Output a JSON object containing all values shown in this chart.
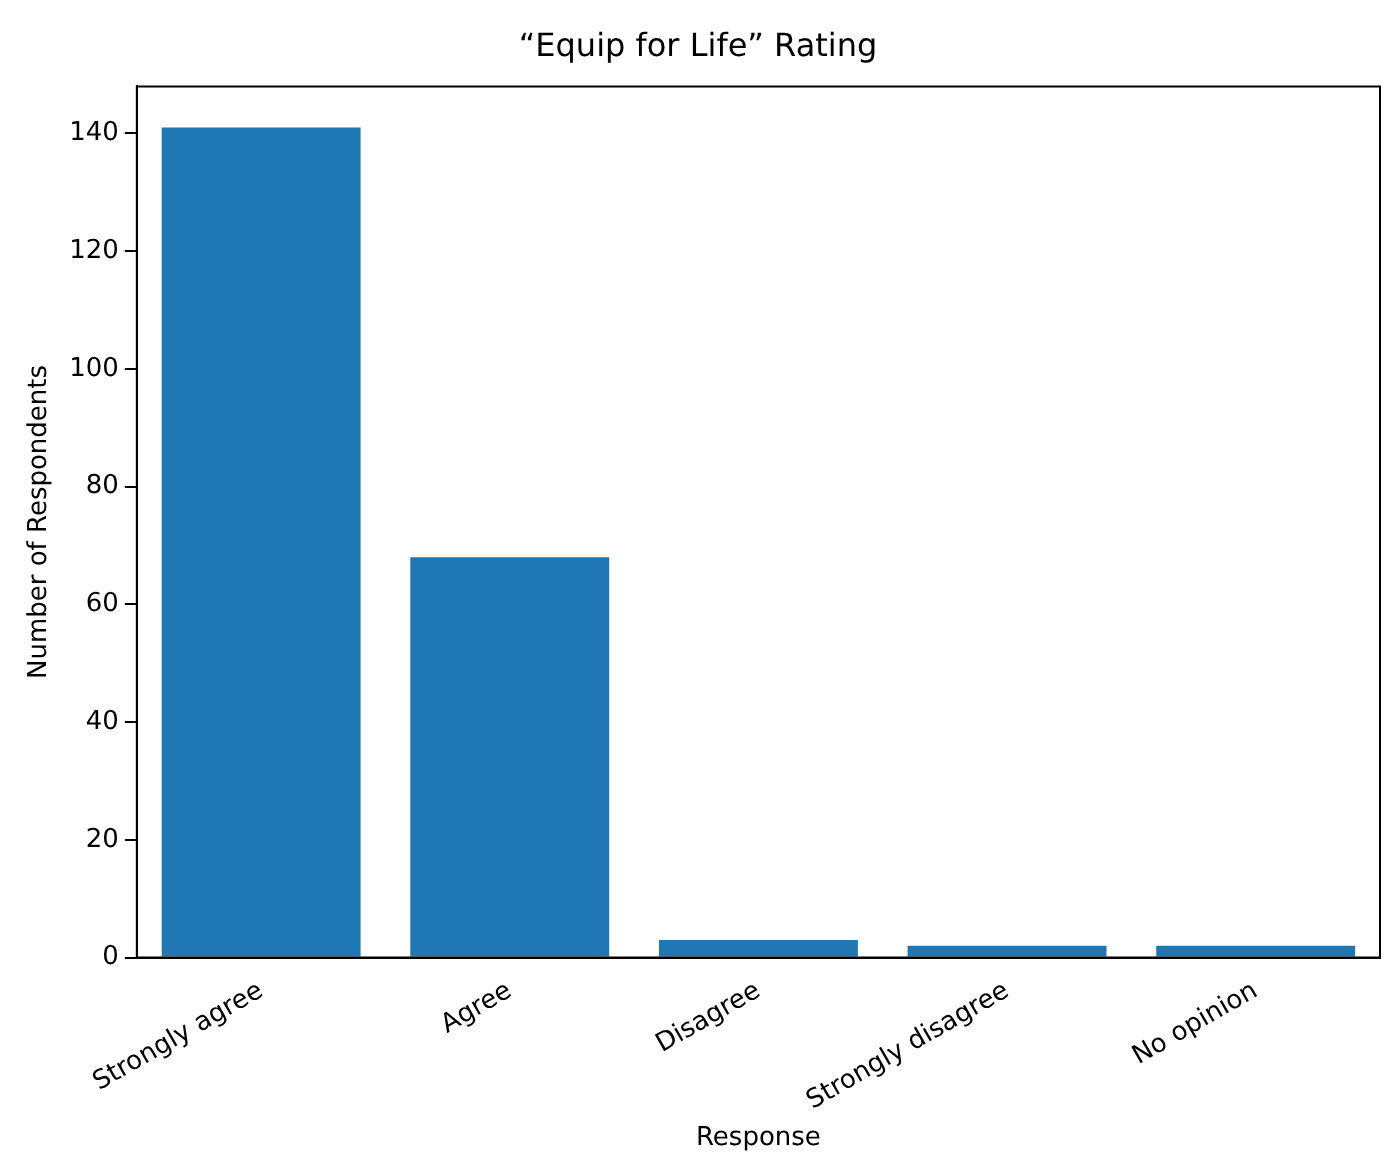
{
  "chart_data": {
    "type": "bar",
    "title": "“Equip for Life” Rating",
    "xlabel": "Response",
    "ylabel": "Number of Respondents",
    "categories": [
      "Strongly agree",
      "Agree",
      "Disagree",
      "Strongly disagree",
      "No opinion"
    ],
    "values": [
      141,
      68,
      3,
      2,
      2
    ],
    "color": "#1f77b4",
    "ylim": [
      0,
      148
    ],
    "yticks": [
      0,
      20,
      40,
      60,
      80,
      100,
      120,
      140
    ],
    "grid": false,
    "legend": false
  }
}
